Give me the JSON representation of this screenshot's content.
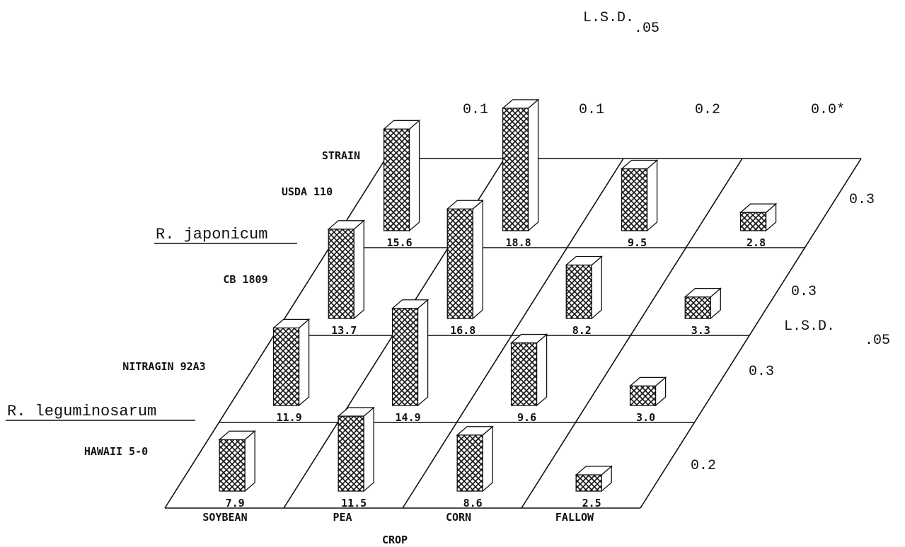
{
  "chart_data": {
    "type": "bar",
    "title": "",
    "crop_axis_label": "CROP",
    "strain_axis_label": "STRAIN",
    "crops": [
      "SOYBEAN",
      "PEA",
      "CORN",
      "FALLOW"
    ],
    "strains": [
      "USDA 110",
      "CB 1809",
      "NITRAGIN 92A3",
      "HAWAII 5-0"
    ],
    "species_groups": [
      {
        "name": "R. japonicum"
      },
      {
        "name": "R. leguminosarum"
      }
    ],
    "values": [
      [
        15.6,
        18.8,
        9.5,
        2.8
      ],
      [
        13.7,
        16.8,
        8.2,
        3.3
      ],
      [
        11.9,
        14.9,
        9.6,
        3.0
      ],
      [
        7.9,
        11.5,
        8.6,
        2.5
      ]
    ],
    "value_labels": [
      [
        "15.6",
        "18.8",
        "9.5",
        "2.8"
      ],
      [
        "13.7",
        "16.8",
        "8.2",
        "3.3"
      ],
      [
        "11.9",
        "14.9",
        "9.6",
        "3.0"
      ],
      [
        "7.9",
        "11.5",
        "8.6",
        "2.5"
      ]
    ],
    "lsd_crop": {
      "label": "L.S.D.",
      "subscript": ".05",
      "values": [
        "0.1",
        "0.1",
        "0.2",
        "0.0*"
      ]
    },
    "lsd_strain": {
      "label": "L.S.D.",
      "subscript": ".05",
      "values": [
        "0.3",
        "0.3",
        "0.3",
        "0.2"
      ]
    },
    "fill_pattern": "crosshatch",
    "color": "#111111"
  }
}
